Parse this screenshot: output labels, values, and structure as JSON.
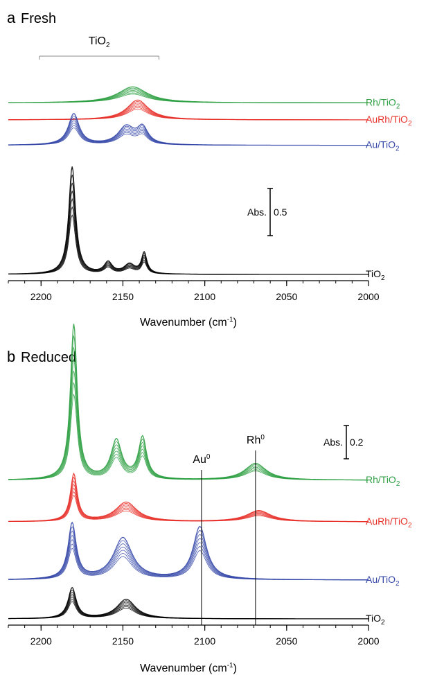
{
  "colors": {
    "green": "#2ea043",
    "red": "#e8312a",
    "blue": "#3548a8",
    "black": "#000000"
  },
  "chart_data": [
    {
      "panel_letter": "a",
      "panel_name": "Fresh",
      "type": "line",
      "xlabel": "Wavenumber (cm⁻¹)",
      "xlabel_base": "Wavenumber (cm",
      "xlabel_sup": "-1",
      "xlabel_tail": ")",
      "xlim": [
        2220,
        2000
      ],
      "xticks": [
        2200,
        2150,
        2100,
        2050,
        2000
      ],
      "x_reversed": true,
      "y_axis": "stacked absorbance (offset), no y-axis ticks",
      "scale_bar": {
        "label": "Abs.",
        "value": "0.5",
        "absorbance": 0.5
      },
      "bracket": {
        "label_base": "TiO",
        "label_sub": "2",
        "x_from": 2201,
        "x_to": 2128
      },
      "series": [
        {
          "name": "Rh/TiO2",
          "label_base": "Rh/TiO",
          "label_sub": "2",
          "color": "#2ea043",
          "offset": 1.82,
          "peaks": [
            {
              "center": 2144,
              "height": 0.17,
              "width": 11,
              "note": "broad band growing over repeated spectra"
            }
          ]
        },
        {
          "name": "AuRh/TiO2",
          "label_base": "AuRh/TiO",
          "label_sub": "2",
          "color": "#e8312a",
          "offset": 1.64,
          "peaks": [
            {
              "center": 2141,
              "height": 0.21,
              "width": 8
            }
          ]
        },
        {
          "name": "Au/TiO2",
          "label_base": "Au/TiO",
          "label_sub": "2",
          "color": "#3548a8",
          "offset": 1.37,
          "peaks": [
            {
              "center": 2180,
              "height": 0.33,
              "width": 4
            },
            {
              "center": 2148,
              "height": 0.19,
              "width": 6
            },
            {
              "center": 2138,
              "height": 0.17,
              "width": 4
            }
          ]
        },
        {
          "name": "TiO2",
          "label_base": "TiO",
          "label_sub": "2",
          "color": "#000000",
          "offset": 0.0,
          "peaks": [
            {
              "center": 2181,
              "height": 1.14,
              "width": 2.5
            },
            {
              "center": 2159,
              "height": 0.12,
              "width": 3
            },
            {
              "center": 2137,
              "height": 0.22,
              "width": 2
            },
            {
              "center": 2146,
              "height": 0.1,
              "width": 4
            }
          ]
        }
      ]
    },
    {
      "panel_letter": "b",
      "panel_name": "Reduced",
      "type": "line",
      "xlabel": "Wavenumber (cm⁻¹)",
      "xlabel_base": "Wavenumber (cm",
      "xlabel_sup": "-1",
      "xlabel_tail": ")",
      "xlim": [
        2220,
        2000
      ],
      "xticks": [
        2200,
        2150,
        2100,
        2050,
        2000
      ],
      "x_reversed": true,
      "y_axis": "stacked absorbance (offset), no y-axis ticks",
      "scale_bar": {
        "label": "Abs.",
        "value": "0.2",
        "absorbance": 0.2
      },
      "vlines": [
        {
          "label_base": "Au",
          "label_sup": "0",
          "x": 2102
        },
        {
          "label_base": "Rh",
          "label_sup": "0",
          "x": 2069
        }
      ],
      "series": [
        {
          "name": "Rh/TiO2",
          "label_base": "Rh/TiO",
          "label_sub": "2",
          "color": "#2ea043",
          "offset": 0.5,
          "peaks": [
            {
              "center": 2180,
              "height": 0.56,
              "width": 2.5
            },
            {
              "center": 2154,
              "height": 0.14,
              "width": 4
            },
            {
              "center": 2138,
              "height": 0.15,
              "width": 3
            },
            {
              "center": 2069,
              "height": 0.06,
              "width": 8
            }
          ]
        },
        {
          "name": "AuRh/TiO2",
          "label_base": "AuRh/TiO",
          "label_sub": "2",
          "color": "#e8312a",
          "offset": 0.35,
          "peaks": [
            {
              "center": 2180,
              "height": 0.17,
              "width": 2.5
            },
            {
              "center": 2148,
              "height": 0.07,
              "width": 8
            },
            {
              "center": 2067,
              "height": 0.04,
              "width": 9
            }
          ]
        },
        {
          "name": "Au/TiO2",
          "label_base": "Au/TiO",
          "label_sub": "2",
          "color": "#3548a8",
          "offset": 0.14,
          "peaks": [
            {
              "center": 2181,
              "height": 0.2,
              "width": 3
            },
            {
              "center": 2150,
              "height": 0.15,
              "width": 7
            },
            {
              "center": 2103,
              "height": 0.19,
              "width": 5
            }
          ]
        },
        {
          "name": "TiO2",
          "label_base": "TiO",
          "label_sub": "2",
          "color": "#000000",
          "offset": 0.0,
          "peaks": [
            {
              "center": 2181,
              "height": 0.11,
              "width": 3
            },
            {
              "center": 2148,
              "height": 0.07,
              "width": 7
            }
          ]
        }
      ]
    }
  ]
}
